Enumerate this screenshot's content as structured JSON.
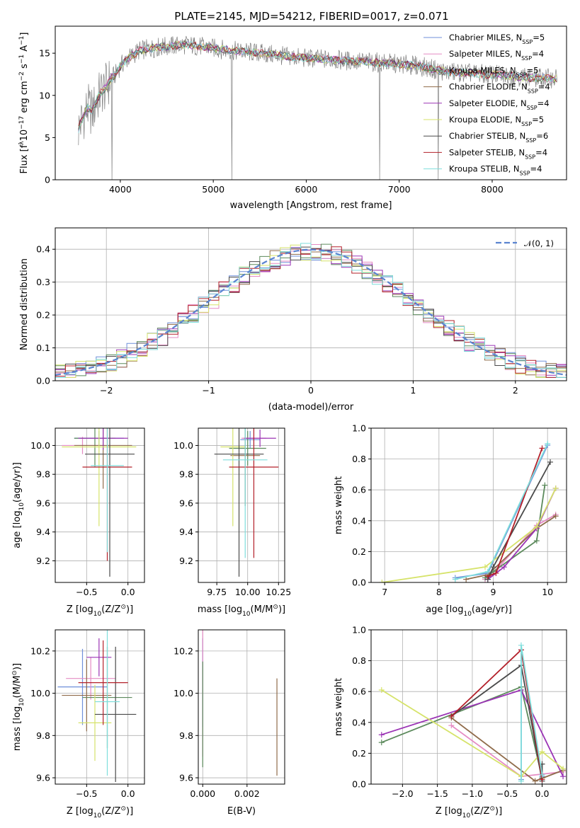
{
  "figure": {
    "title": "PLATE=2145, MJD=54212, FIBERID=0017, z=0.071"
  },
  "colors": {
    "models": [
      "#6f8fd9",
      "#e58bc3",
      "#5c8a5c",
      "#8f6b4a",
      "#9b34b5",
      "#d6e36a",
      "#4a4a4a",
      "#b3202a",
      "#7fdedc"
    ],
    "data": "#808080",
    "normal": "#5b84d0"
  },
  "chart_data": [
    {
      "type": "line",
      "name": "spectrum",
      "xlabel": "wavelength [Angstrom, rest frame]",
      "ylabel_parts": [
        "Flux [f",
        "λ",
        "10",
        "−17",
        " erg cm",
        "−2",
        " s",
        "−1",
        " A",
        "−1",
        "]"
      ],
      "xlim": [
        3300,
        8800
      ],
      "ylim": [
        0,
        18.2
      ],
      "xticks": [
        4000,
        5000,
        6000,
        7000,
        8000
      ],
      "yticks": [
        0,
        5,
        10,
        15
      ],
      "legend_placement": "top-right",
      "legend": [
        {
          "label": "Chabrier MILES, N",
          "sub": "SSP",
          "val": "=5"
        },
        {
          "label": "Salpeter MILES, N",
          "sub": "SSP",
          "val": "=4"
        },
        {
          "label": "Kroupa MILES, N",
          "sub": "SSP",
          "val": "=5"
        },
        {
          "label": "Chabrier ELODIE, N",
          "sub": "SSP",
          "val": "=4"
        },
        {
          "label": "Salpeter ELODIE, N",
          "sub": "SSP",
          "val": "=4"
        },
        {
          "label": "Kroupa ELODIE, N",
          "sub": "SSP",
          "val": "=5"
        },
        {
          "label": "Chabrier STELIB, N",
          "sub": "SSP",
          "val": "=6"
        },
        {
          "label": "Salpeter STELIB, N",
          "sub": "SSP",
          "val": "=4"
        },
        {
          "label": "Kroupa STELIB, N",
          "sub": "SSP",
          "val": "=4"
        }
      ],
      "continuum": {
        "x": [
          3550,
          3600,
          3650,
          3700,
          3750,
          3800,
          3850,
          3900,
          3950,
          4000,
          4100,
          4200,
          4300,
          4400,
          4500,
          4700,
          5000,
          5200,
          5500,
          5800,
          6000,
          6300,
          6600,
          6900,
          7200,
          7500,
          7800,
          8100,
          8400,
          8700
        ],
        "y": [
          6.0,
          7.5,
          8.5,
          8.0,
          9.5,
          10.5,
          11.0,
          12.0,
          12.5,
          13.5,
          14.5,
          15.3,
          15.5,
          15.7,
          15.8,
          16.0,
          15.6,
          15.3,
          15.0,
          14.6,
          14.4,
          14.2,
          14.0,
          13.8,
          13.5,
          12.8,
          12.6,
          12.4,
          12.1,
          12.0
        ]
      },
      "data_spikes": [
        [
          3910,
          0
        ],
        [
          5200,
          0
        ],
        [
          6790,
          0
        ],
        [
          7420,
          0
        ]
      ]
    },
    {
      "type": "bar",
      "name": "residual-histogram",
      "xlabel": "(data-model)/error",
      "ylabel": "Normed distribution",
      "xlim": [
        -2.5,
        2.5
      ],
      "ylim": [
        0,
        0.465
      ],
      "xticks": [
        -2,
        -1,
        0,
        1,
        2
      ],
      "xtick_labels": [
        "−2",
        "−1",
        "0",
        "1",
        "2"
      ],
      "yticks": [
        0,
        0.1,
        0.2,
        0.3,
        0.4
      ],
      "ytick_labels": [
        "0.0",
        "0.1",
        "0.2",
        "0.3",
        "0.4"
      ],
      "grid": true,
      "bin_width": 0.1,
      "legend_placement": "top-right",
      "normal_label": "𝒩(0, 1)"
    },
    {
      "type": "scatter",
      "name": "age-vs-metallicity",
      "xlabel_parts": [
        "Z [log",
        "10",
        "(Z/Z",
        "⊙",
        ")]"
      ],
      "ylabel_parts": [
        "age  [log",
        "10",
        "(age/yr)]"
      ],
      "xlim": [
        -0.88,
        0.2
      ],
      "ylim": [
        9.05,
        10.12
      ],
      "xticks": [
        -0.5,
        0.0
      ],
      "xtick_labels": [
        "−0.5",
        "0.0"
      ],
      "yticks": [
        9.2,
        9.4,
        9.6,
        9.8,
        10.0
      ],
      "ytick_labels": [
        "9.2",
        "9.4",
        "9.6",
        "9.8",
        "10.0"
      ],
      "grid": true,
      "points": [
        {
          "x": -0.35,
          "xe": 0.3,
          "y": 10.05,
          "ye": 0.05
        },
        {
          "x": -0.55,
          "xe": 0.25,
          "y": 10.0,
          "ye": 0.06
        },
        {
          "x": -0.4,
          "xe": 0.25,
          "y": 10.05,
          "ye": 0.2
        },
        {
          "x": -0.3,
          "xe": 0.35,
          "y": 10.0,
          "ye": 0.3
        },
        {
          "x": -0.3,
          "xe": 0.3,
          "y": 10.05,
          "ye": 0.08
        },
        {
          "x": -0.35,
          "xe": 0.45,
          "y": 9.99,
          "ye": 0.55
        },
        {
          "x": -0.22,
          "xe": 0.3,
          "y": 9.94,
          "ye": 0.85
        },
        {
          "x": -0.25,
          "xe": 0.3,
          "y": 9.85,
          "ye": 0.65
        },
        {
          "x": -0.25,
          "xe": 0.2,
          "y": 9.86,
          "ye": 0.6
        }
      ]
    },
    {
      "type": "scatter",
      "name": "age-vs-mass",
      "xlabel_parts": [
        "mass [log",
        "10",
        "(M/M",
        "⊙",
        ")]"
      ],
      "ylabel_parts": [],
      "xlim": [
        9.6,
        10.3
      ],
      "ylim": [
        9.05,
        10.12
      ],
      "xticks": [
        9.75,
        10.0,
        10.25
      ],
      "xtick_labels": [
        "9.75",
        "10.00",
        "10.25"
      ],
      "yticks": [
        9.2,
        9.4,
        9.6,
        9.8,
        10.0
      ],
      "ytick_labels": [
        "9.2",
        "9.4",
        "9.6",
        "9.8",
        "10.0"
      ],
      "grid": true,
      "points": [
        {
          "x": 10.02,
          "xe": 0.08,
          "y": 10.04,
          "ye": 0.06
        },
        {
          "x": 10.05,
          "xe": 0.1,
          "y": 10.05,
          "ye": 0.07
        },
        {
          "x": 10.0,
          "xe": 0.15,
          "y": 9.98,
          "ye": 0.12
        },
        {
          "x": 9.98,
          "xe": 0.12,
          "y": 9.93,
          "ye": 0.35
        },
        {
          "x": 10.1,
          "xe": 0.13,
          "y": 10.05,
          "ye": 0.06
        },
        {
          "x": 9.88,
          "xe": 0.1,
          "y": 9.99,
          "ye": 0.55
        },
        {
          "x": 9.93,
          "xe": 0.2,
          "y": 9.94,
          "ye": 0.85
        },
        {
          "x": 10.05,
          "xe": 0.2,
          "y": 9.85,
          "ye": 0.63
        },
        {
          "x": 9.98,
          "xe": 0.18,
          "y": 9.9,
          "ye": 0.68
        }
      ]
    },
    {
      "type": "line",
      "name": "mass-weight-vs-age",
      "xlabel_parts": [
        "age  [log",
        "10",
        "(age/yr)]"
      ],
      "ylabel": "mass weight",
      "xlim": [
        6.75,
        10.35
      ],
      "ylim": [
        0,
        1.0
      ],
      "xticks": [
        7,
        8,
        9,
        10
      ],
      "xtick_labels": [
        "7",
        "8",
        "9",
        "10"
      ],
      "yticks": [
        0,
        0.2,
        0.4,
        0.6,
        0.8,
        1.0
      ],
      "ytick_labels": [
        "0.0",
        "0.2",
        "0.4",
        "0.6",
        "0.8",
        "1.0"
      ],
      "grid": true,
      "series": [
        {
          "x": [
            8.3,
            8.9,
            10.0
          ],
          "y": [
            0.03,
            0.06,
            0.89
          ]
        },
        {
          "x": [
            8.85,
            9.1,
            9.8,
            10.15
          ],
          "y": [
            0.02,
            0.1,
            0.37,
            0.44
          ]
        },
        {
          "x": [
            8.85,
            9.0,
            9.8,
            9.95
          ],
          "y": [
            0.03,
            0.07,
            0.27,
            0.63
          ]
        },
        {
          "x": [
            8.5,
            8.9,
            9.8,
            10.15
          ],
          "y": [
            0.02,
            0.05,
            0.35,
            0.43
          ]
        },
        {
          "x": [
            8.9,
            9.2,
            9.8,
            10.15
          ],
          "y": [
            0.02,
            0.1,
            0.35,
            0.61
          ]
        },
        {
          "x": [
            6.95,
            8.85,
            9.8,
            10.15
          ],
          "y": [
            0.0,
            0.1,
            0.36,
            0.61
          ]
        },
        {
          "x": [
            8.9,
            9.0,
            10.05
          ],
          "y": [
            0.02,
            0.1,
            0.78
          ]
        },
        {
          "x": [
            8.9,
            9.05,
            9.9
          ],
          "y": [
            0.04,
            0.06,
            0.87
          ]
        },
        {
          "x": [
            8.3,
            8.9,
            10.0
          ],
          "y": [
            0.02,
            0.07,
            0.9
          ]
        }
      ]
    },
    {
      "type": "scatter",
      "name": "mass-vs-metallicity",
      "xlabel_parts": [
        "Z [log",
        "10",
        "(Z/Z",
        "⊙",
        ")]"
      ],
      "ylabel_parts": [
        "mass [log",
        "10",
        "(M/M",
        "⊙",
        ")]"
      ],
      "xlim": [
        -0.88,
        0.2
      ],
      "ylim": [
        9.57,
        10.3
      ],
      "xticks": [
        -0.5,
        0.0
      ],
      "xtick_labels": [
        "−0.5",
        "0.0"
      ],
      "yticks": [
        9.6,
        9.8,
        10.0,
        10.2
      ],
      "ytick_labels": [
        "9.6",
        "9.8",
        "10.0",
        "10.2"
      ],
      "grid": true,
      "points": [
        {
          "x": -0.55,
          "xe": 0.3,
          "y": 10.03,
          "ye": 0.18
        },
        {
          "x": -0.45,
          "xe": 0.3,
          "y": 10.07,
          "ye": 0.1
        },
        {
          "x": -0.25,
          "xe": 0.3,
          "y": 9.98,
          "ye": 0.24
        },
        {
          "x": -0.5,
          "xe": 0.3,
          "y": 9.99,
          "ye": 0.17
        },
        {
          "x": -0.35,
          "xe": 0.15,
          "y": 10.17,
          "ye": 0.09
        },
        {
          "x": -0.4,
          "xe": 0.2,
          "y": 9.86,
          "ye": 0.18
        },
        {
          "x": -0.15,
          "xe": 0.25,
          "y": 9.9,
          "ye": 0.32
        },
        {
          "x": -0.3,
          "xe": 0.3,
          "y": 10.05,
          "ye": 0.2
        },
        {
          "x": -0.25,
          "xe": 0.15,
          "y": 9.96,
          "ye": 0.35
        }
      ]
    },
    {
      "type": "scatter",
      "name": "mass-vs-extinction",
      "xlabel": "E(B-V)",
      "xlim": [
        -0.0002,
        0.0037
      ],
      "ylim": [
        9.57,
        10.3
      ],
      "xticks": [
        0.0,
        0.002
      ],
      "xtick_labels": [
        "0.000",
        "0.002"
      ],
      "yticks": [
        9.6,
        9.8,
        10.0,
        10.2
      ],
      "ytick_labels": [
        "9.6",
        "9.8",
        "10.0",
        "10.2"
      ],
      "grid": true,
      "points": [
        {
          "x": 0.0,
          "xe": 0,
          "y": 10.05,
          "ye": 0.21
        },
        {
          "x": 0.0,
          "xe": 0,
          "y": 10.0,
          "ye": 0.3
        },
        {
          "x": 0.0,
          "xe": 0,
          "y": 9.9,
          "ye": 0.25
        },
        {
          "x": 0.00335,
          "xe": 0,
          "y": 9.84,
          "ye": 0.23
        }
      ]
    },
    {
      "type": "line",
      "name": "mass-weight-vs-metallicity",
      "xlabel_parts": [
        "Z [log",
        "10",
        "(Z/Z",
        "⊙",
        ")]"
      ],
      "ylabel": "mass weight",
      "xlim": [
        -2.45,
        0.35
      ],
      "ylim": [
        0,
        1.0
      ],
      "xticks": [
        -2.0,
        -1.5,
        -1.0,
        -0.5,
        0.0
      ],
      "xtick_labels": [
        "−2.0",
        "−1.5",
        "−1.0",
        "−0.5",
        "0.0"
      ],
      "yticks": [
        0,
        0.2,
        0.4,
        0.6,
        0.8,
        1.0
      ],
      "ytick_labels": [
        "0.0",
        "0.2",
        "0.4",
        "0.6",
        "0.8",
        "1.0"
      ],
      "grid": true,
      "series": [
        {
          "x": [
            -0.3,
            -0.3,
            0.0
          ],
          "y": [
            0.03,
            0.87,
            0.05
          ]
        },
        {
          "x": [
            -1.3,
            -0.3,
            0.3
          ],
          "y": [
            0.38,
            0.05,
            0.08
          ]
        },
        {
          "x": [
            -2.3,
            -0.3,
            0.0
          ],
          "y": [
            0.27,
            0.63,
            0.04
          ]
        },
        {
          "x": [
            -1.3,
            -0.1,
            0.3
          ],
          "y": [
            0.43,
            0.02,
            0.09
          ]
        },
        {
          "x": [
            -2.3,
            -0.3,
            0.3
          ],
          "y": [
            0.32,
            0.61,
            0.05
          ]
        },
        {
          "x": [
            -2.3,
            -0.3,
            0.0,
            0.3
          ],
          "y": [
            0.61,
            0.05,
            0.21,
            0.1
          ]
        },
        {
          "x": [
            -1.3,
            -0.3,
            0.0,
            0.0
          ],
          "y": [
            0.44,
            0.77,
            0.02,
            0.13
          ]
        },
        {
          "x": [
            -1.3,
            -0.3,
            0.0
          ],
          "y": [
            0.44,
            0.87,
            0.03
          ]
        },
        {
          "x": [
            -0.3,
            -0.3,
            0.0
          ],
          "y": [
            0.02,
            0.9,
            0.06
          ]
        }
      ]
    }
  ]
}
